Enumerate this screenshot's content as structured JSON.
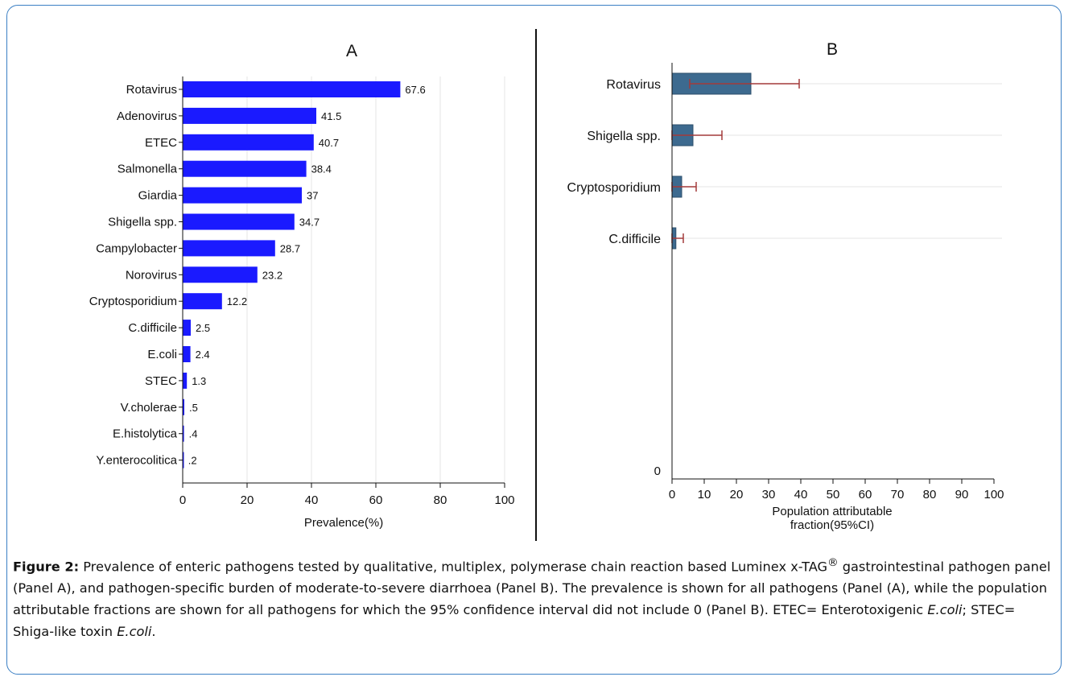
{
  "chart_data": [
    {
      "type": "bar",
      "orientation": "horizontal",
      "title": "A",
      "xlabel": "Prevalence(%)",
      "xlim": [
        0,
        100
      ],
      "xticks": [
        "0",
        "20",
        "40",
        "60",
        "80",
        "100"
      ],
      "grid": true,
      "bar_color": "#1a1aff",
      "categories": [
        "Rotavirus",
        "Adenovirus",
        "ETEC",
        "Salmonella",
        "Giardia",
        "Shigella spp.",
        "Campylobacter",
        "Norovirus",
        "Cryptosporidium",
        "C.difficile",
        "E.coli",
        "STEC",
        "V.cholerae",
        "E.histolytica",
        "Y.enterocolitica"
      ],
      "values": [
        67.6,
        41.5,
        40.7,
        38.4,
        37,
        34.7,
        28.7,
        23.2,
        12.2,
        2.5,
        2.4,
        1.3,
        0.5,
        0.4,
        0.2
      ],
      "value_labels": [
        "67.6",
        "41.5",
        "40.7",
        "38.4",
        "37",
        "34.7",
        "28.7",
        "23.2",
        "12.2",
        "2.5",
        "2.4",
        "1.3",
        ".5",
        ".4",
        ".2"
      ]
    },
    {
      "type": "bar",
      "orientation": "horizontal",
      "title": "B",
      "xlabel_lines": [
        "Population attributable",
        "fraction(95%CI)"
      ],
      "xlim": [
        0,
        100
      ],
      "xticks": [
        "0",
        "10",
        "20",
        "30",
        "40",
        "50",
        "60",
        "70",
        "80",
        "90",
        "100"
      ],
      "grid": true,
      "bar_color": "#3d6a8f",
      "error_color": "#a33a3a",
      "categories": [
        "Rotavirus",
        "Shigella spp.",
        "Cryptosporidium",
        "C.difficile"
      ],
      "values": [
        24.5,
        6.5,
        3,
        1.2
      ],
      "ci_low": [
        5.5,
        0,
        0,
        0
      ],
      "ci_high": [
        39.5,
        15.5,
        7.5,
        3.5
      ],
      "extra_y_label": "0"
    }
  ],
  "caption": {
    "label": "Figure 2:",
    "t1": " Prevalence of enteric pathogens tested by qualitative, multiplex, polymerase chain reaction based Luminex x-TAG",
    "sup": "®",
    "t2": " gastrointestinal pathogen panel (Panel A), and pathogen-specific burden of moderate-to-severe diarrhoea (Panel B). The prevalence is shown for all pathogens (Panel (A), while the population attributable fractions are shown for all pathogens for which the 95% confidence interval did not include 0 (Panel B). ETEC= Enterotoxigenic ",
    "it1": "E.coli",
    "t3": "; STEC= Shiga-like toxin ",
    "it2": "E.coli",
    "t4": "."
  }
}
